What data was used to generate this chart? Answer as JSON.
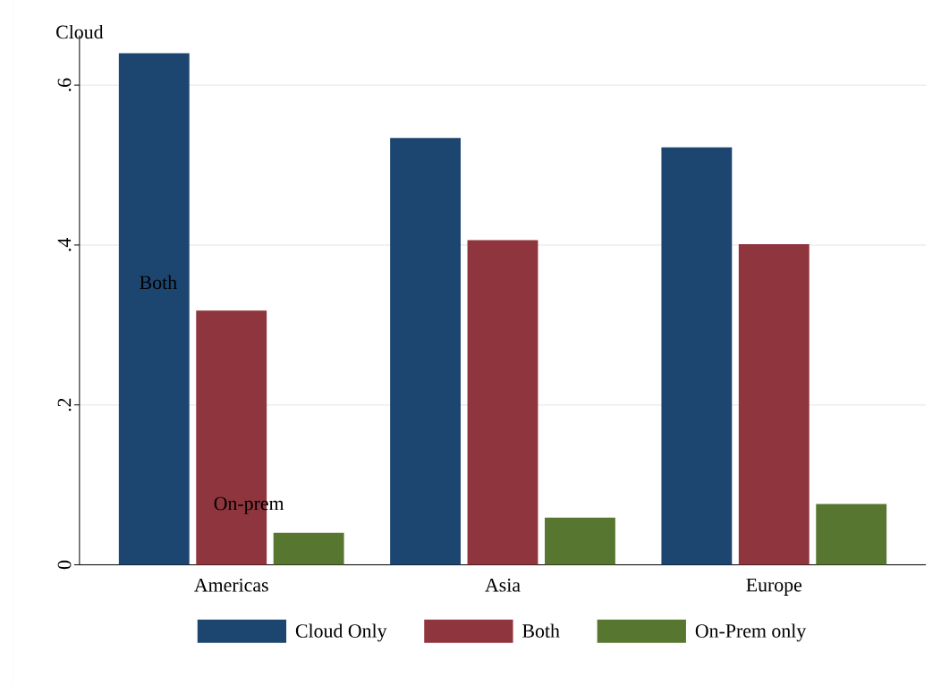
{
  "chart_data": {
    "type": "bar",
    "categories": [
      "Americas",
      "Asia",
      "Europe"
    ],
    "series": [
      {
        "name": "Cloud Only",
        "color": "#1c4670",
        "values": [
          0.64,
          0.534,
          0.522
        ]
      },
      {
        "name": "Both",
        "color": "#8f353d",
        "values": [
          0.318,
          0.406,
          0.401
        ]
      },
      {
        "name": "On-Prem only",
        "color": "#577630",
        "values": [
          0.04,
          0.059,
          0.076
        ]
      }
    ],
    "ylim": [
      0,
      0.662
    ],
    "yticks": [
      {
        "value": 0,
        "label": "0"
      },
      {
        "value": 0.2,
        "label": ".2"
      },
      {
        "value": 0.4,
        "label": ".4"
      },
      {
        "value": 0.6,
        "label": ".6"
      }
    ],
    "grid": "y",
    "legend": "bottom",
    "annotations": [
      "Cloud",
      "Both",
      "On-prem"
    ]
  }
}
